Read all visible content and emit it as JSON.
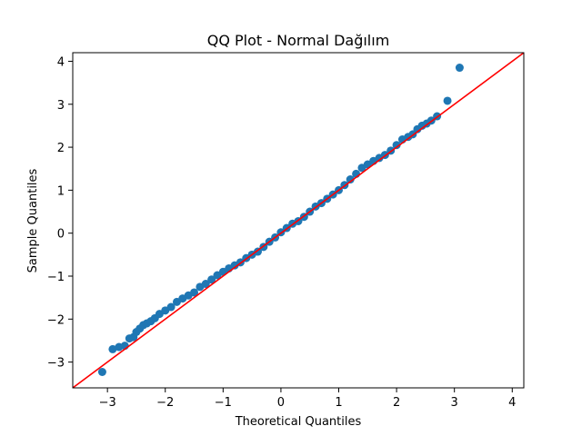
{
  "chart_data": {
    "type": "scatter",
    "title": "QQ Plot - Normal Dağılım",
    "xlabel": "Theoretical Quantiles",
    "ylabel": "Sample Quantiles",
    "xlim": [
      -3.6,
      4.2
    ],
    "ylim": [
      -3.6,
      4.2
    ],
    "xticks": [
      -3,
      -2,
      -1,
      0,
      1,
      2,
      3,
      4
    ],
    "yticks": [
      -3,
      -2,
      -1,
      0,
      1,
      2,
      3,
      4
    ],
    "grid": false,
    "series": [
      {
        "type": "scatter",
        "color": "#1f77b4",
        "x": [
          -3.09,
          -2.91,
          -2.8,
          -2.7,
          -2.62,
          -2.55,
          -2.5,
          -2.44,
          -2.38,
          -2.32,
          -2.25,
          -2.18,
          -2.1,
          -2.0,
          -1.9,
          -1.8,
          -1.7,
          -1.6,
          -1.5,
          -1.4,
          -1.3,
          -1.2,
          -1.1,
          -1.0,
          -0.9,
          -0.8,
          -0.7,
          -0.6,
          -0.5,
          -0.4,
          -0.3,
          -0.2,
          -0.1,
          0.0,
          0.1,
          0.2,
          0.3,
          0.4,
          0.5,
          0.6,
          0.7,
          0.8,
          0.9,
          1.0,
          1.1,
          1.2,
          1.3,
          1.4,
          1.5,
          1.6,
          1.7,
          1.8,
          1.9,
          2.0,
          2.1,
          2.2,
          2.28,
          2.36,
          2.44,
          2.52,
          2.6,
          2.7,
          2.88,
          3.09
        ],
        "y": [
          -3.23,
          -2.7,
          -2.65,
          -2.62,
          -2.45,
          -2.42,
          -2.3,
          -2.22,
          -2.14,
          -2.1,
          -2.05,
          -1.98,
          -1.88,
          -1.8,
          -1.72,
          -1.6,
          -1.52,
          -1.45,
          -1.38,
          -1.25,
          -1.18,
          -1.08,
          -0.98,
          -0.9,
          -0.82,
          -0.75,
          -0.68,
          -0.58,
          -0.5,
          -0.43,
          -0.32,
          -0.2,
          -0.1,
          0.02,
          0.12,
          0.22,
          0.28,
          0.38,
          0.5,
          0.62,
          0.7,
          0.8,
          0.9,
          1.0,
          1.12,
          1.25,
          1.38,
          1.52,
          1.6,
          1.68,
          1.75,
          1.82,
          1.92,
          2.05,
          2.18,
          2.24,
          2.3,
          2.42,
          2.5,
          2.55,
          2.62,
          2.72,
          3.08,
          3.85
        ]
      },
      {
        "type": "line",
        "color": "#ff0000",
        "x": [
          -3.6,
          4.2
        ],
        "y": [
          -3.6,
          4.2
        ]
      }
    ]
  }
}
